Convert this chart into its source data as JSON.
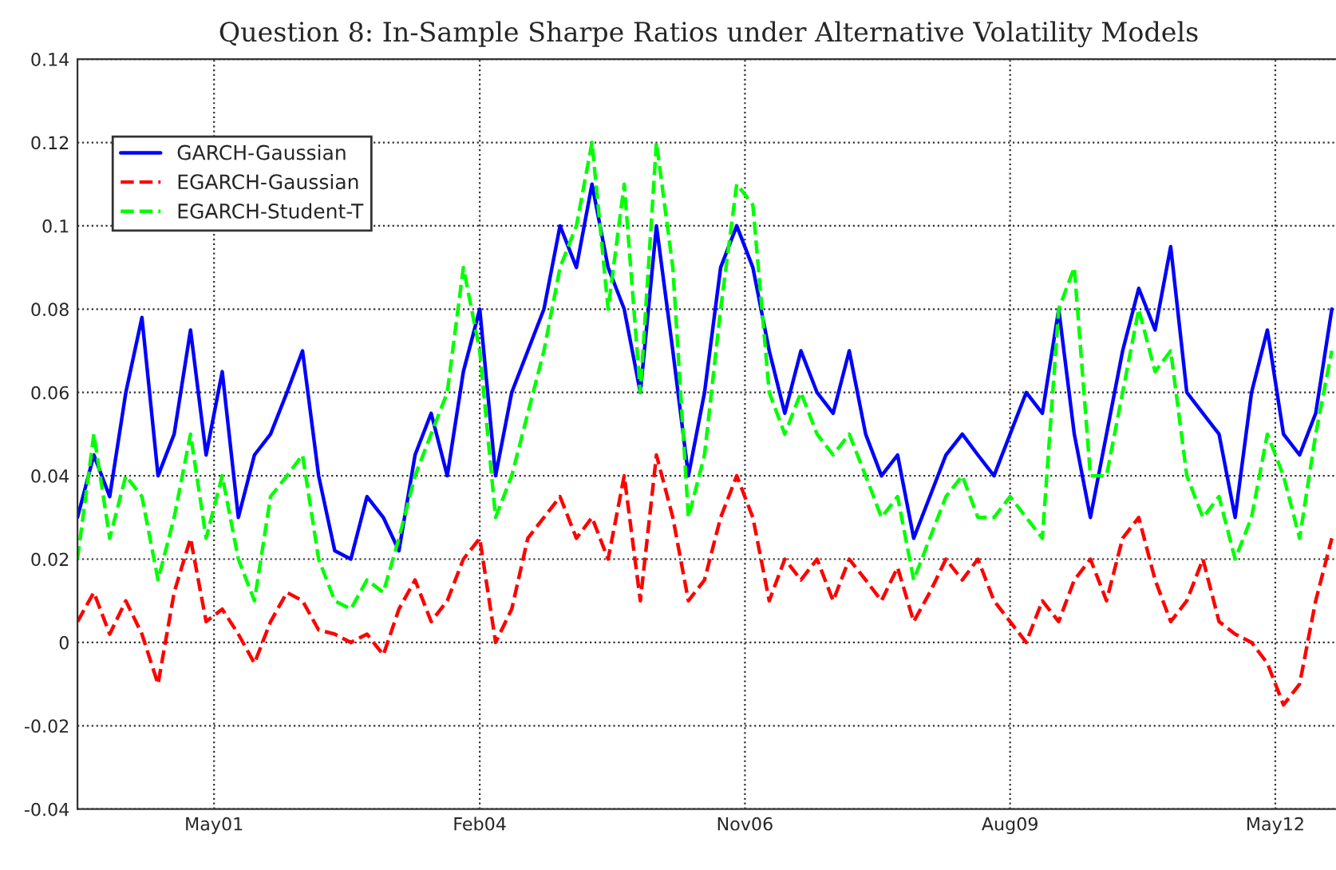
{
  "chart_data": {
    "type": "line",
    "title": "Question 8: In-Sample Sharpe Ratios under Alternative Volatility Models",
    "x": [
      "1999-12",
      "2000-02",
      "2000-04",
      "2000-06",
      "2000-08",
      "2000-10",
      "2000-12",
      "2001-02",
      "2001-04",
      "2001-06",
      "2001-08",
      "2001-10",
      "2001-12",
      "2002-02",
      "2002-04",
      "2002-06",
      "2002-08",
      "2002-10",
      "2002-12",
      "2003-02",
      "2003-04",
      "2003-06",
      "2003-08",
      "2003-10",
      "2003-12",
      "2004-02",
      "2004-04",
      "2004-06",
      "2004-08",
      "2004-10",
      "2004-12",
      "2005-02",
      "2005-04",
      "2005-06",
      "2005-08",
      "2005-10",
      "2005-12",
      "2006-02",
      "2006-04",
      "2006-06",
      "2006-08",
      "2006-10",
      "2006-12",
      "2007-02",
      "2007-04",
      "2007-06",
      "2007-08",
      "2007-10",
      "2007-12",
      "2008-02",
      "2008-04",
      "2008-06",
      "2008-08",
      "2008-10",
      "2008-12",
      "2009-02",
      "2009-04",
      "2009-06",
      "2009-08",
      "2009-10",
      "2009-12",
      "2010-02",
      "2010-04",
      "2010-06",
      "2010-08",
      "2010-10",
      "2010-12",
      "2011-02",
      "2011-04",
      "2011-06",
      "2011-08",
      "2011-10",
      "2011-12",
      "2012-02",
      "2012-04",
      "2012-06",
      "2012-08",
      "2012-10",
      "2012-12"
    ],
    "series": [
      {
        "name": "GARCH-Gaussian",
        "color": "#0000ff",
        "line_style": "solid",
        "values": [
          0.03,
          0.045,
          0.035,
          0.06,
          0.078,
          0.04,
          0.05,
          0.075,
          0.045,
          0.065,
          0.03,
          0.045,
          0.05,
          0.06,
          0.07,
          0.04,
          0.022,
          0.02,
          0.035,
          0.03,
          0.022,
          0.045,
          0.055,
          0.04,
          0.065,
          0.08,
          0.04,
          0.06,
          0.07,
          0.08,
          0.1,
          0.09,
          0.11,
          0.09,
          0.08,
          0.06,
          0.1,
          0.07,
          0.04,
          0.06,
          0.09,
          0.1,
          0.09,
          0.07,
          0.055,
          0.07,
          0.06,
          0.055,
          0.07,
          0.05,
          0.04,
          0.045,
          0.025,
          0.035,
          0.045,
          0.05,
          0.045,
          0.04,
          0.05,
          0.06,
          0.055,
          0.08,
          0.05,
          0.03,
          0.05,
          0.07,
          0.085,
          0.075,
          0.095,
          0.06,
          0.055,
          0.05,
          0.03,
          0.06,
          0.075,
          0.05,
          0.045,
          0.055,
          0.08
        ]
      },
      {
        "name": "EGARCH-Gaussian",
        "color": "#ff0000",
        "line_style": "dashed",
        "values": [
          0.005,
          0.012,
          0.002,
          0.01,
          0.002,
          -0.01,
          0.012,
          0.025,
          0.005,
          0.008,
          0.002,
          -0.005,
          0.005,
          0.012,
          0.01,
          0.003,
          0.002,
          0.0,
          0.002,
          -0.003,
          0.008,
          0.015,
          0.005,
          0.01,
          0.02,
          0.025,
          0.0,
          0.008,
          0.025,
          0.03,
          0.035,
          0.025,
          0.03,
          0.02,
          0.04,
          0.01,
          0.045,
          0.03,
          0.01,
          0.015,
          0.03,
          0.04,
          0.03,
          0.01,
          0.02,
          0.015,
          0.02,
          0.01,
          0.02,
          0.015,
          0.01,
          0.018,
          0.005,
          0.012,
          0.02,
          0.015,
          0.02,
          0.01,
          0.005,
          0.0,
          0.01,
          0.005,
          0.015,
          0.02,
          0.01,
          0.025,
          0.03,
          0.015,
          0.005,
          0.01,
          0.02,
          0.005,
          0.002,
          0.0,
          -0.005,
          -0.015,
          -0.01,
          0.01,
          0.025
        ]
      },
      {
        "name": "EGARCH-Student-T",
        "color": "#00ff00",
        "line_style": "dashed",
        "values": [
          0.02,
          0.05,
          0.025,
          0.04,
          0.035,
          0.015,
          0.03,
          0.05,
          0.025,
          0.04,
          0.02,
          0.01,
          0.035,
          0.04,
          0.045,
          0.02,
          0.01,
          0.008,
          0.015,
          0.012,
          0.025,
          0.04,
          0.05,
          0.06,
          0.09,
          0.07,
          0.03,
          0.04,
          0.055,
          0.07,
          0.09,
          0.1,
          0.12,
          0.08,
          0.11,
          0.06,
          0.12,
          0.09,
          0.03,
          0.045,
          0.08,
          0.11,
          0.105,
          0.06,
          0.05,
          0.06,
          0.05,
          0.045,
          0.05,
          0.04,
          0.03,
          0.035,
          0.015,
          0.025,
          0.035,
          0.04,
          0.03,
          0.03,
          0.035,
          0.03,
          0.025,
          0.08,
          0.09,
          0.04,
          0.04,
          0.06,
          0.08,
          0.065,
          0.07,
          0.04,
          0.03,
          0.035,
          0.02,
          0.03,
          0.05,
          0.04,
          0.025,
          0.05,
          0.07
        ]
      }
    ],
    "xlim": [
      "1999-12",
      "2013-01"
    ],
    "xticks": [
      {
        "value": "2001-05",
        "label": "May01"
      },
      {
        "value": "2004-02",
        "label": "Feb04"
      },
      {
        "value": "2006-11",
        "label": "Nov06"
      },
      {
        "value": "2009-08",
        "label": "Aug09"
      },
      {
        "value": "2012-05",
        "label": "May12"
      }
    ],
    "ylim": [
      -0.04,
      0.14
    ],
    "yticks": [
      -0.04,
      -0.02,
      0,
      0.02,
      0.04,
      0.06,
      0.08,
      0.1,
      0.12,
      0.14
    ],
    "grid": true,
    "legend": "top left"
  }
}
